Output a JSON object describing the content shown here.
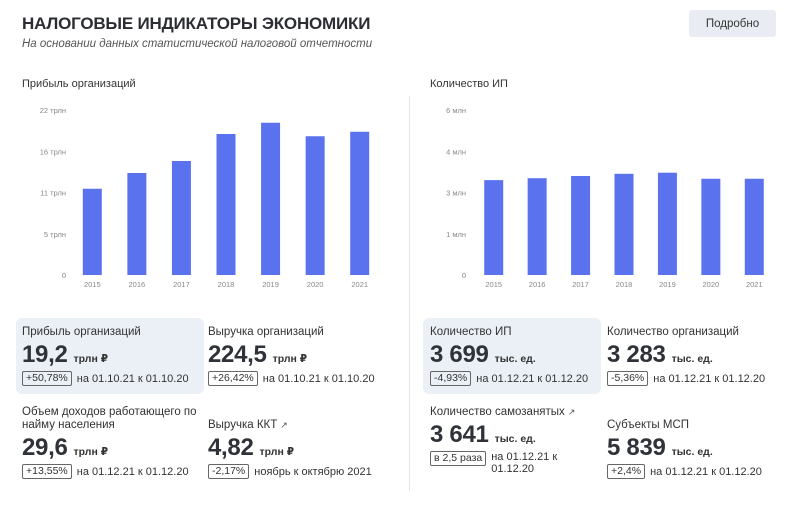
{
  "header": {
    "title": "НАЛОГОВЫЕ ИНДИКАТОРЫ ЭКОНОМИКИ",
    "subtitle": "На основании данных статистической налоговой отчетности",
    "more_button": "Подробно"
  },
  "colors": {
    "bar": "#5b72ee",
    "highlight": "#eaf0f6"
  },
  "chart_data": [
    {
      "type": "bar",
      "title": "Прибыль организаций",
      "categories": [
        "2015",
        "2016",
        "2017",
        "2018",
        "2019",
        "2020",
        "2021"
      ],
      "values": [
        11.5,
        13.6,
        15.2,
        18.8,
        20.3,
        18.5,
        19.1
      ],
      "yticks": [
        "0",
        "5 трлн",
        "11 трлн",
        "16 трлн",
        "22 трлн"
      ],
      "ytick_values": [
        0,
        5.5,
        11,
        16.5,
        22
      ],
      "ylim": [
        0,
        22
      ],
      "grid": false
    },
    {
      "type": "bar",
      "title": "Количество ИП",
      "categories": [
        "2015",
        "2016",
        "2017",
        "2018",
        "2019",
        "2020",
        "2021"
      ],
      "values": [
        3.45,
        3.52,
        3.6,
        3.68,
        3.72,
        3.5,
        3.5
      ],
      "yticks": [
        "0",
        "1 млн",
        "3 млн",
        "4 млн",
        "6 млн"
      ],
      "ytick_values": [
        0,
        1.5,
        3,
        4.5,
        6
      ],
      "ylim": [
        0,
        6
      ],
      "grid": false
    }
  ],
  "stats": {
    "profit": {
      "label": "Прибыль организаций",
      "value": "19,2",
      "unit": "трлн ₽",
      "change": "+50,78%",
      "period": "на 01.10.21 к 01.10.20"
    },
    "revenue": {
      "label": "Выручка организаций",
      "value": "224,5",
      "unit": "трлн ₽",
      "change": "+26,42%",
      "period": "на 01.10.21 к 01.10.20"
    },
    "income": {
      "label": "Объем доходов работающего по найму населения",
      "value": "29,6",
      "unit": "трлн ₽",
      "change": "+13,55%",
      "period": "на 01.12.21 к 01.12.20"
    },
    "kkt": {
      "label": "Выручка ККТ",
      "value": "4,82",
      "unit": "трлн ₽",
      "change": "-2,17%",
      "period": "ноябрь к октябрю 2021"
    },
    "ip": {
      "label": "Количество ИП",
      "value": "3 699",
      "unit": "тыс. ед.",
      "change": "-4,93%",
      "period": "на 01.12.21 к 01.12.20"
    },
    "orgs": {
      "label": "Количество организаций",
      "value": "3 283",
      "unit": "тыс. ед.",
      "change": "-5,36%",
      "period": "на 01.12.21 к 01.12.20"
    },
    "selfemp": {
      "label": "Количество самозанятых",
      "value": "3 641",
      "unit": "тыс. ед.",
      "change": "в 2,5 раза",
      "period": "на 01.12.21 к 01.12.20"
    },
    "msp": {
      "label": "Субъекты МСП",
      "value": "5 839",
      "unit": "тыс. ед.",
      "change": "+2,4%",
      "period": "на 01.12.21 к 01.12.20"
    }
  }
}
